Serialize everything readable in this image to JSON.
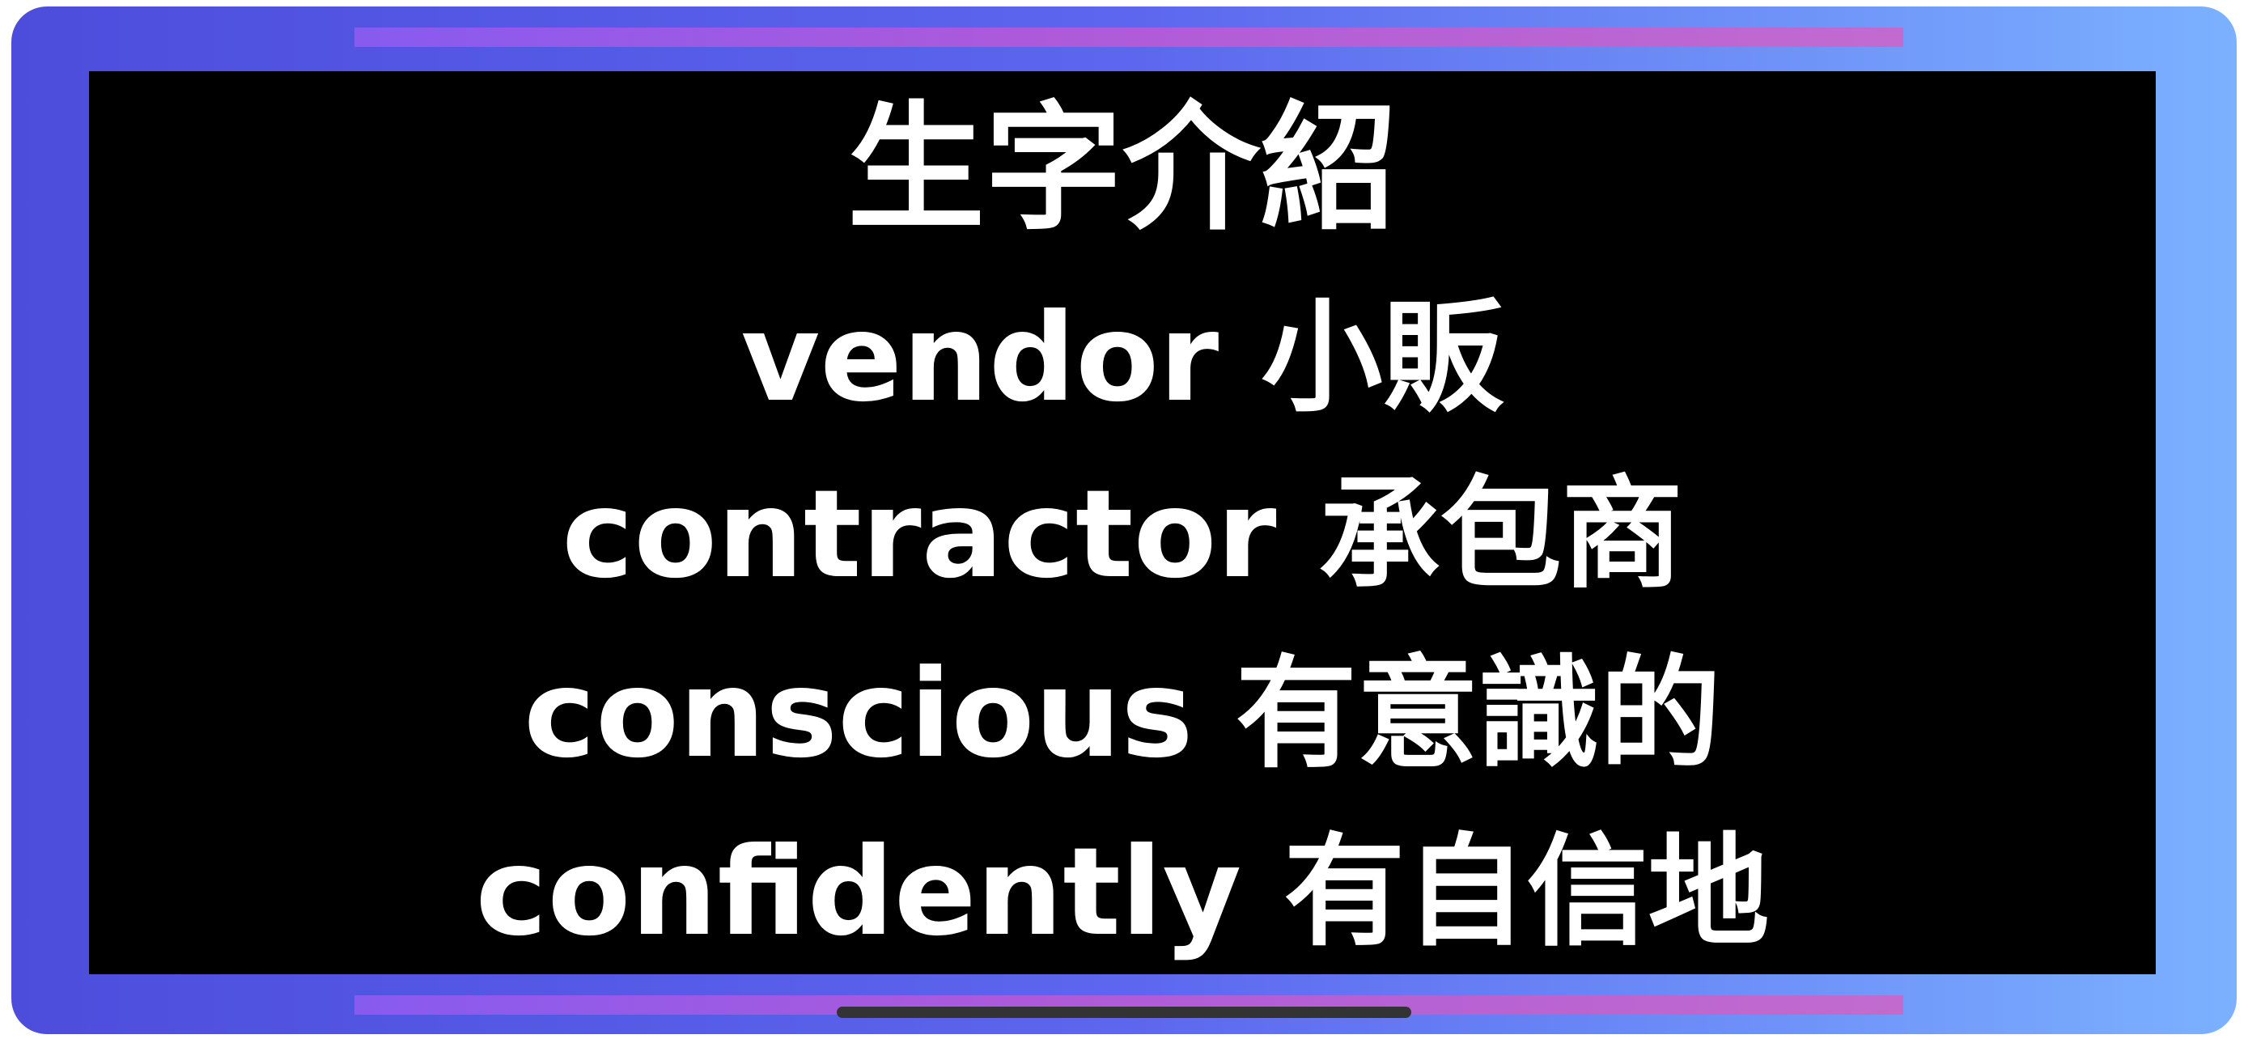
{
  "slide": {
    "title": "生字介紹",
    "vocabulary": [
      {
        "text": "vendor 小販"
      },
      {
        "text": "contractor 承包商"
      },
      {
        "text": "conscious 有意識的"
      },
      {
        "text": "confidently 有自信地"
      }
    ]
  },
  "colors": {
    "frame_gradient_start": "#4d4ddc",
    "frame_gradient_end": "#7bb1ff",
    "accent_bar": "#b25ad8",
    "screen_background": "#000000",
    "text": "#ffffff"
  }
}
